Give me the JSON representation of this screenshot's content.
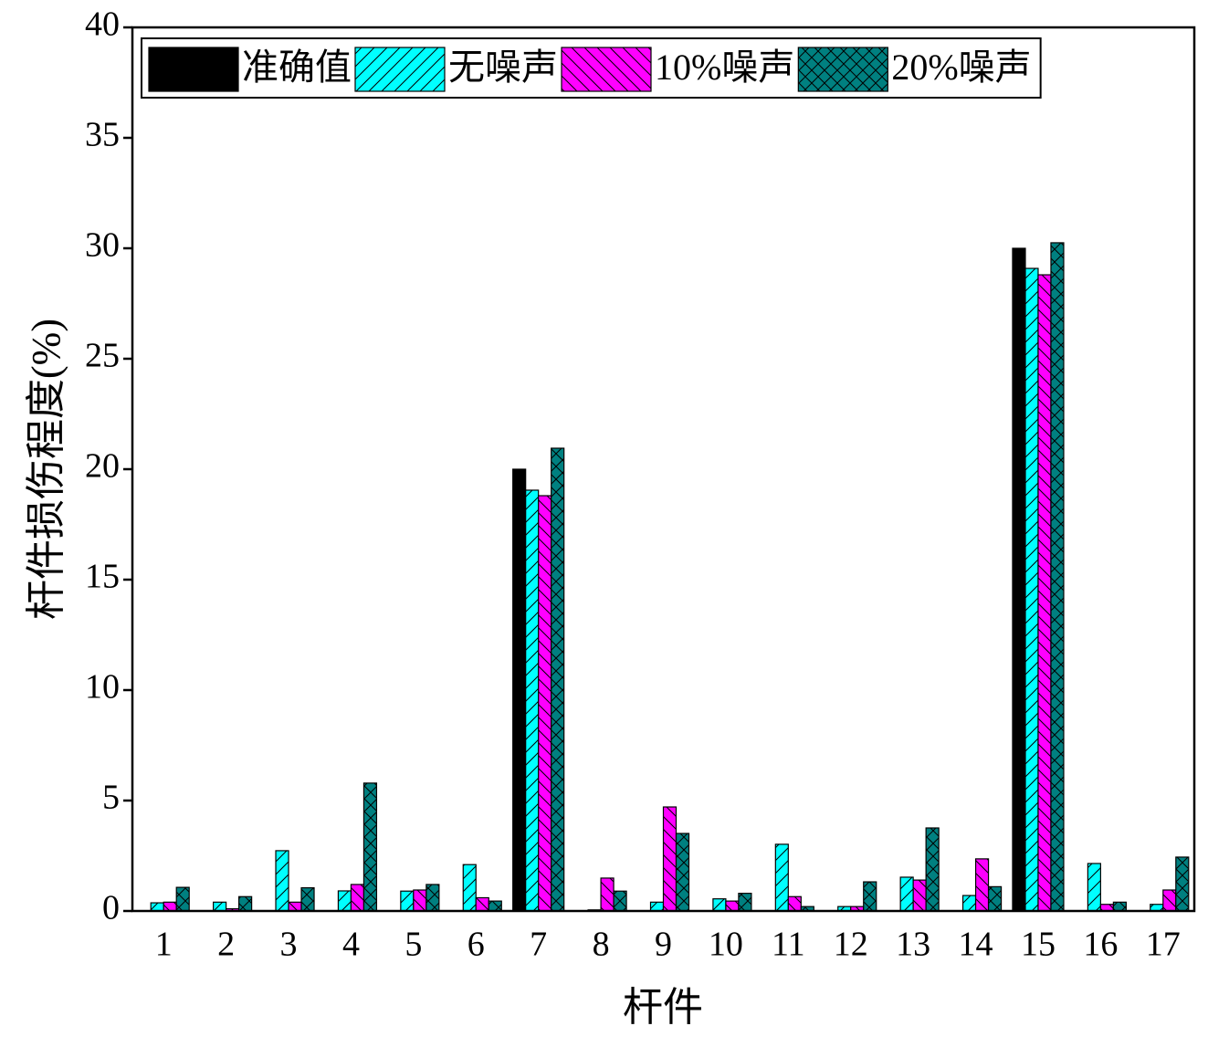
{
  "chart_data": {
    "type": "bar",
    "xlabel": "杆件",
    "ylabel": "杆件损伤程度(%)",
    "categories": [
      "1",
      "2",
      "3",
      "4",
      "5",
      "6",
      "7",
      "8",
      "9",
      "10",
      "11",
      "12",
      "13",
      "14",
      "15",
      "16",
      "17"
    ],
    "series": [
      {
        "name": "准确值",
        "color": "#000000",
        "hatch": "none",
        "values": [
          0,
          0,
          0,
          0,
          0,
          0,
          20,
          0,
          0,
          0,
          0,
          0,
          0,
          0,
          30,
          0,
          0
        ]
      },
      {
        "name": "无噪声",
        "color": "#00ffff",
        "hatch": "/",
        "values": [
          0.37,
          0.4,
          2.73,
          0.91,
          0.9,
          2.1,
          19.05,
          0.05,
          0.4,
          0.55,
          3.02,
          0.2,
          1.53,
          0.7,
          29.09,
          2.15,
          0.3
        ]
      },
      {
        "name": "10%噪声",
        "color": "#ff00ff",
        "hatch": "\\",
        "values": [
          0.4,
          0.1,
          0.4,
          1.2,
          0.95,
          0.6,
          18.8,
          1.49,
          4.71,
          0.45,
          0.65,
          0.2,
          1.4,
          2.36,
          28.8,
          0.3,
          0.95
        ]
      },
      {
        "name": "20%噪声",
        "color": "#008080",
        "hatch": "x",
        "values": [
          1.07,
          0.65,
          1.05,
          5.79,
          1.2,
          0.45,
          20.95,
          0.9,
          3.51,
          0.8,
          0.2,
          1.32,
          3.76,
          1.1,
          30.25,
          0.4,
          2.44
        ]
      }
    ],
    "ylim": [
      0,
      40
    ],
    "yticks": [
      0,
      5,
      10,
      15,
      20,
      25,
      30,
      35,
      40
    ],
    "grid": false,
    "legend": "top"
  }
}
